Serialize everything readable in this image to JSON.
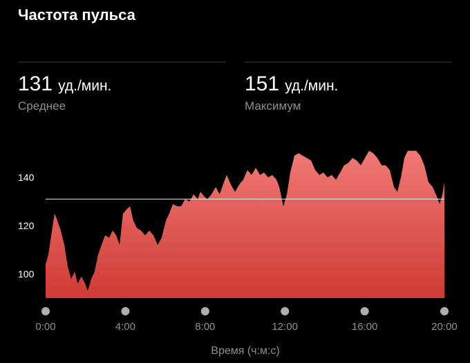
{
  "title": "Частота пульса",
  "stats": [
    {
      "value": 131,
      "unit": "уд./мин.",
      "label": "Среднее"
    },
    {
      "value": 151,
      "unit": "уд./мин.",
      "label": "Максимум"
    }
  ],
  "chart_data": {
    "type": "area",
    "xlabel": "Время (ч:м:с)",
    "color": "#e0504a",
    "x": [
      0,
      0.14,
      0.28,
      0.45,
      0.55,
      0.76,
      0.94,
      1.11,
      1.28,
      1.46,
      1.6,
      1.8,
      1.98,
      2.11,
      2.29,
      2.46,
      2.63,
      2.81,
      2.98,
      3.19,
      3.36,
      3.54,
      3.71,
      3.88,
      4.09,
      4.23,
      4.4,
      4.58,
      4.78,
      4.99,
      5.2,
      5.41,
      5.62,
      5.82,
      6.03,
      6.2,
      6.38,
      6.59,
      6.79,
      7,
      7.21,
      7.42,
      7.63,
      7.76,
      7.97,
      8.11,
      8.32,
      8.53,
      8.73,
      8.94,
      9.08,
      9.29,
      9.5,
      9.71,
      9.91,
      10.12,
      10.33,
      10.54,
      10.75,
      10.95,
      11.16,
      11.37,
      11.58,
      11.72,
      11.92,
      12.1,
      12.27,
      12.48,
      12.69,
      12.89,
      13.1,
      13.31,
      13.52,
      13.73,
      13.93,
      14.14,
      14.35,
      14.56,
      14.77,
      14.97,
      15.18,
      15.39,
      15.6,
      15.81,
      16.01,
      16.22,
      16.43,
      16.64,
      16.85,
      17.05,
      17.26,
      17.47,
      17.64,
      17.82,
      17.99,
      18.16,
      18.37,
      18.58,
      18.79,
      18.99,
      19.2,
      19.41,
      19.62,
      19.76,
      19.9,
      20
    ],
    "values": [
      104,
      108,
      116,
      125,
      123,
      118,
      112,
      103,
      98,
      101,
      96,
      99,
      96,
      93,
      98,
      101,
      108,
      112,
      116,
      115,
      118,
      116,
      112,
      125,
      127,
      128,
      122,
      119,
      118,
      116,
      118,
      116,
      112,
      115,
      122,
      125,
      129,
      128,
      128,
      131,
      130,
      133,
      131,
      134,
      132,
      131,
      133,
      136,
      133,
      138,
      141,
      137,
      134,
      137,
      139,
      143,
      141,
      144,
      141,
      142,
      140,
      141,
      139,
      136,
      128,
      133,
      142,
      149,
      150,
      149,
      148,
      147,
      143,
      141,
      142,
      140,
      141,
      139,
      142,
      145,
      146,
      148,
      147,
      145,
      148,
      151,
      150,
      148,
      145,
      145,
      143,
      136,
      134,
      140,
      148,
      151,
      151,
      151,
      149,
      145,
      138,
      136,
      132,
      129,
      133,
      138
    ],
    "xlim": [
      0,
      20
    ],
    "xticks": [
      {
        "value": 0,
        "label": "0:00"
      },
      {
        "value": 4,
        "label": "4:00"
      },
      {
        "value": 8,
        "label": "8:00"
      },
      {
        "value": 12,
        "label": "12:00"
      },
      {
        "value": 16,
        "label": "16:00"
      },
      {
        "value": 20,
        "label": "20:00"
      }
    ],
    "ylim": [
      90,
      160
    ],
    "yticks": [
      100,
      120,
      140
    ],
    "grid": false
  }
}
